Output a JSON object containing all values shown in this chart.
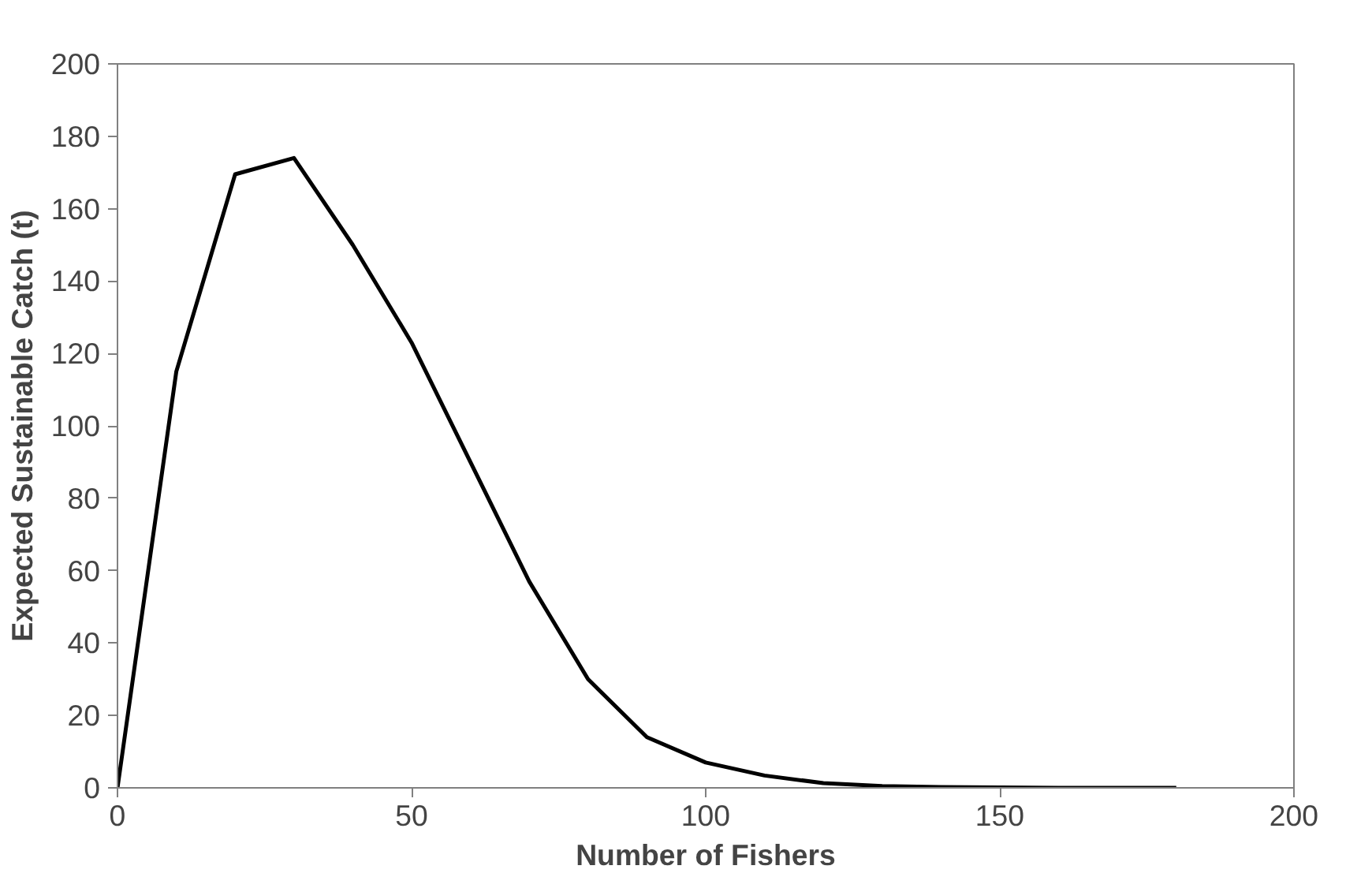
{
  "chart_data": {
    "type": "line",
    "xlabel": "Number of Fishers",
    "ylabel": "Expected Sustainable Catch (t)",
    "x": [
      0,
      10,
      20,
      30,
      40,
      50,
      60,
      70,
      80,
      90,
      100,
      110,
      120,
      130,
      140,
      150,
      160,
      170,
      180
    ],
    "series": [
      {
        "color": "#000000",
        "values": [
          0,
          115,
          169.5,
          174,
          150,
          123,
          90,
          57,
          30,
          14,
          7,
          3.4,
          1.3,
          0.5,
          0.2,
          0.1,
          0,
          0,
          0
        ]
      }
    ],
    "xlim": [
      0,
      200
    ],
    "xticks": [
      0,
      50,
      100,
      150,
      200
    ],
    "ylim": [
      0,
      200
    ],
    "yticks": [
      0,
      20,
      40,
      60,
      80,
      100,
      120,
      140,
      160,
      180,
      200
    ],
    "grid": false,
    "marker": "none",
    "line_style": "solid"
  }
}
